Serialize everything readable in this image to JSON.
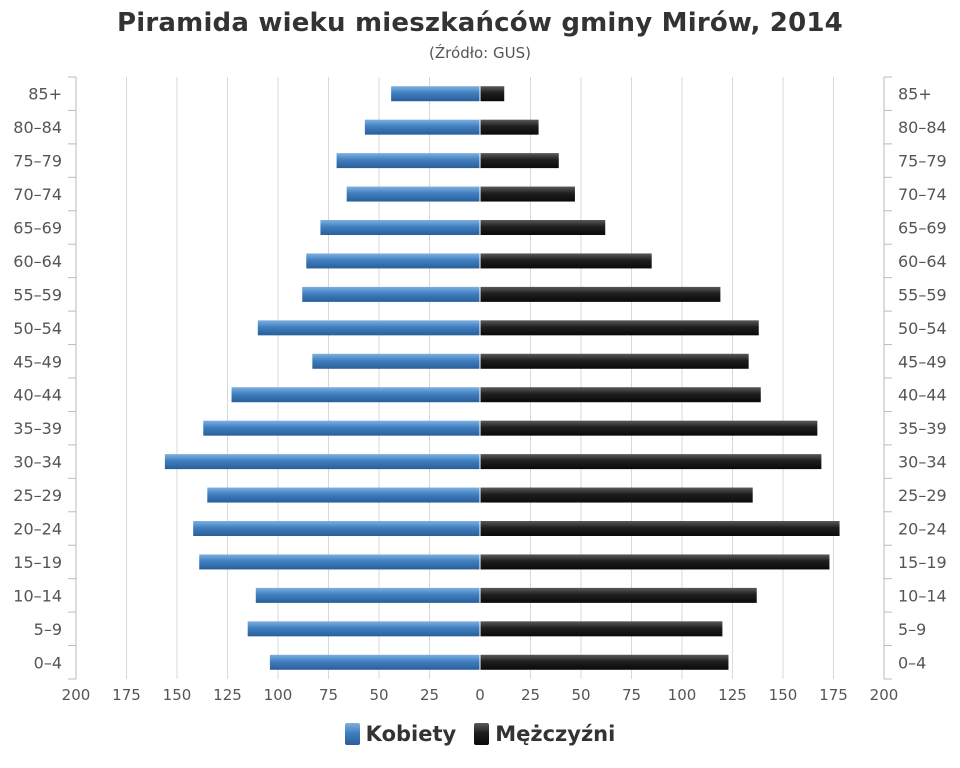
{
  "title": "Piramida wieku mieszkańców gminy Mirów, 2014",
  "subtitle": "(Źródło: GUS)",
  "colors": {
    "female": "#3f7fc0",
    "male": "#1e1e1e",
    "grid": "#d8d8d8"
  },
  "chart_data": {
    "type": "bar",
    "orientation": "horizontal-pyramid",
    "title": "Piramida wieku mieszkańców gminy Mirów, 2014",
    "subtitle": "(Źródło: GUS)",
    "categories": [
      "85+",
      "80–84",
      "75–79",
      "70–74",
      "65–69",
      "60–64",
      "55–59",
      "50–54",
      "45–49",
      "40–44",
      "35–39",
      "30–34",
      "25–29",
      "20–24",
      "15–19",
      "10–14",
      "5–9",
      "0–4"
    ],
    "series": [
      {
        "name": "Kobiety",
        "values": [
          44,
          57,
          71,
          66,
          79,
          86,
          88,
          110,
          83,
          123,
          137,
          156,
          135,
          142,
          139,
          111,
          115,
          104
        ]
      },
      {
        "name": "Mężczyźni",
        "values": [
          12,
          29,
          39,
          47,
          62,
          85,
          119,
          138,
          133,
          139,
          167,
          169,
          135,
          178,
          173,
          137,
          120,
          123
        ]
      }
    ],
    "x_ticks": [
      "200",
      "175",
      "150",
      "125",
      "100",
      "75",
      "50",
      "25",
      "0",
      "25",
      "50",
      "75",
      "100",
      "125",
      "150",
      "175",
      "200"
    ],
    "xlim": [
      -200,
      200
    ],
    "grid": true,
    "legend_position": "bottom"
  }
}
